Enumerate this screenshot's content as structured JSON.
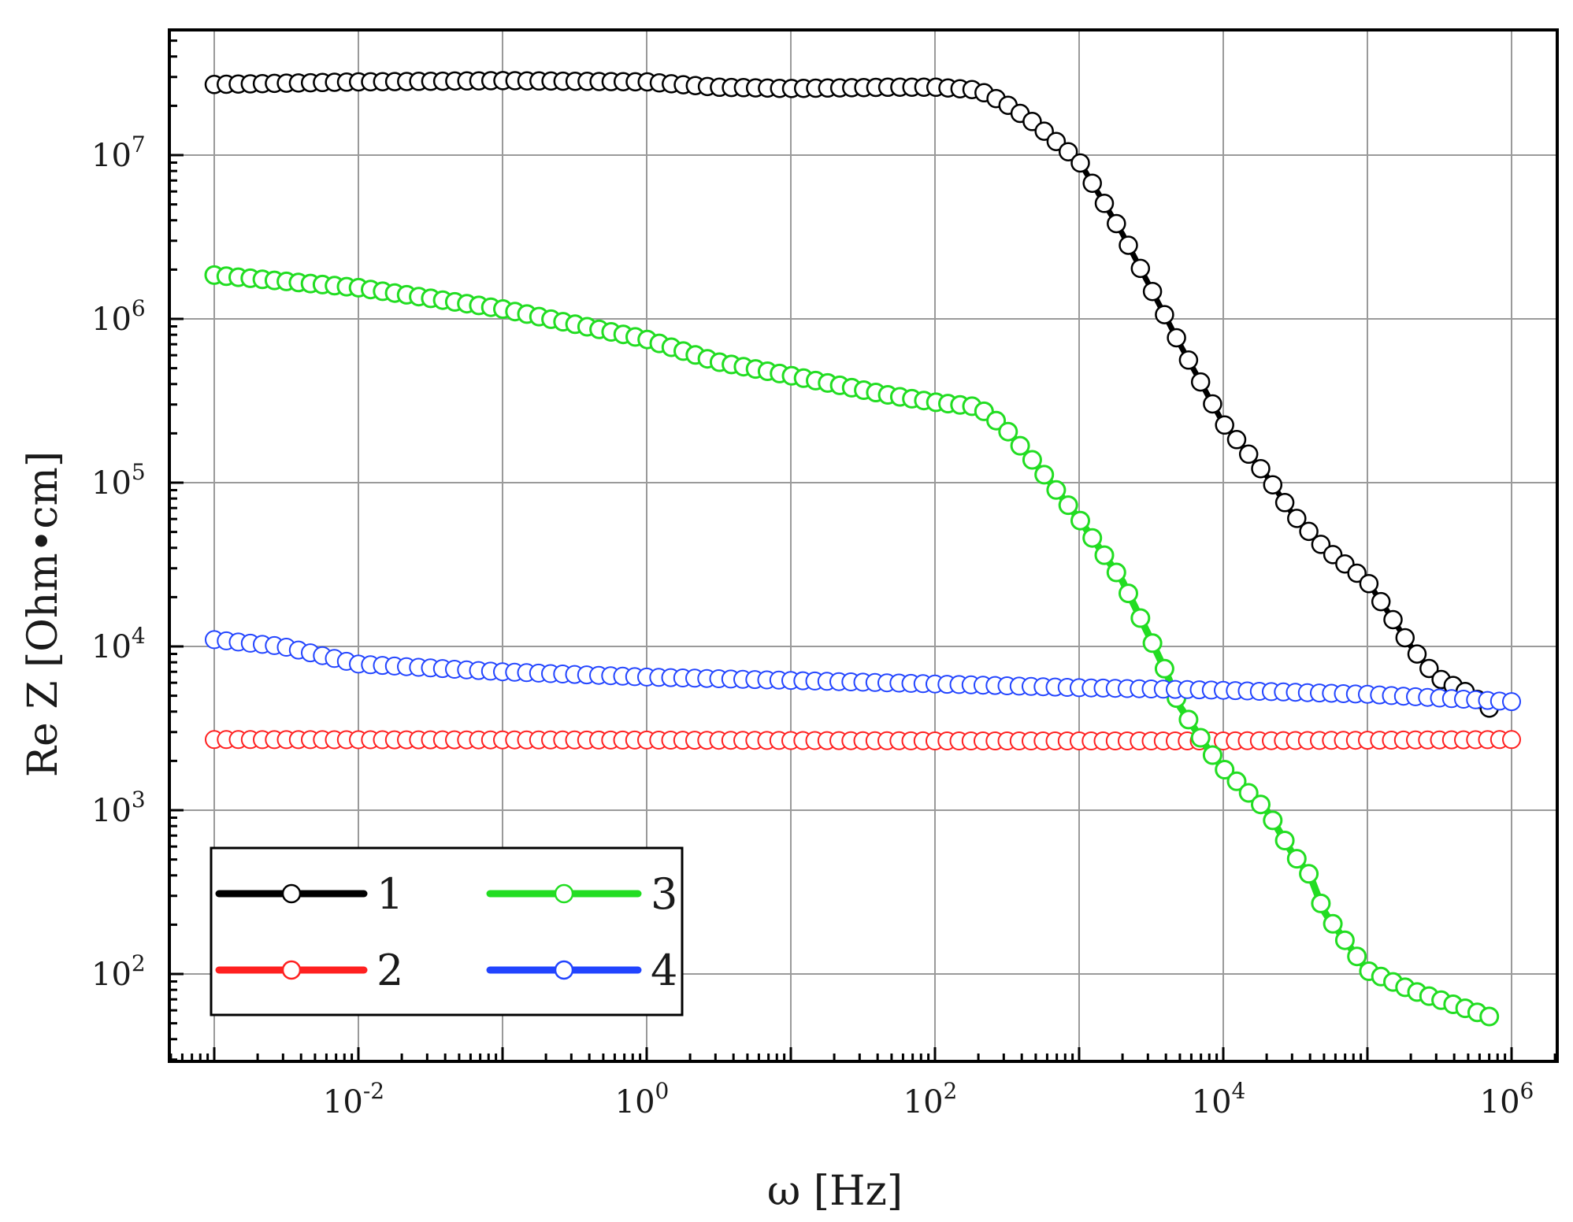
{
  "chart_data": {
    "type": "line",
    "xlabel": "ω [Hz]",
    "ylabel": "Re Z [Ohm•cm]",
    "xscale": "log",
    "yscale": "log",
    "xlim": [
      0.0005,
      2000000
    ],
    "ylim": [
      40,
      60000000
    ],
    "grid": true,
    "legend_position": "bottom-left",
    "x_ticks": [
      {
        "base": "10",
        "exp": "-2",
        "value": 0.01
      },
      {
        "base": "10",
        "exp": "0",
        "value": 1
      },
      {
        "base": "10",
        "exp": "2",
        "value": 100
      },
      {
        "base": "10",
        "exp": "4",
        "value": 10000
      },
      {
        "base": "10",
        "exp": "6",
        "value": 1000000
      }
    ],
    "y_ticks": [
      {
        "base": "10",
        "exp": "2",
        "value": 100
      },
      {
        "base": "10",
        "exp": "3",
        "value": 1000
      },
      {
        "base": "10",
        "exp": "4",
        "value": 10000
      },
      {
        "base": "10",
        "exp": "5",
        "value": 100000
      },
      {
        "base": "10",
        "exp": "6",
        "value": 1000000
      },
      {
        "base": "10",
        "exp": "7",
        "value": 10000000
      }
    ],
    "series": [
      {
        "name": "1",
        "color": "#000000",
        "points": [
          [
            0.001,
            27000000
          ],
          [
            0.01,
            28000000
          ],
          [
            0.1,
            28500000
          ],
          [
            1,
            28000000
          ],
          [
            3,
            26000000
          ],
          [
            10,
            25500000
          ],
          [
            50,
            26000000
          ],
          [
            100,
            26000000
          ],
          [
            200,
            25000000
          ],
          [
            300,
            21000000
          ],
          [
            500,
            15500000
          ],
          [
            1000,
            9200000
          ],
          [
            2000,
            3300000
          ],
          [
            5000,
            700000
          ],
          [
            10000,
            230000
          ],
          [
            20000,
            110000
          ],
          [
            30000,
            65000
          ],
          [
            50000,
            40000
          ],
          [
            100000,
            25000
          ],
          [
            200000,
            10000
          ],
          [
            300000,
            6500
          ],
          [
            500000,
            5200
          ],
          [
            700000,
            4200
          ]
        ]
      },
      {
        "name": "2",
        "color": "#ff2020",
        "points": [
          [
            0.001,
            2700
          ],
          [
            1,
            2680
          ],
          [
            100,
            2650
          ],
          [
            10000,
            2650
          ],
          [
            1000000,
            2700
          ]
        ]
      },
      {
        "name": "3",
        "color": "#22dd22",
        "points": [
          [
            0.001,
            1850000
          ],
          [
            0.01,
            1550000
          ],
          [
            0.1,
            1150000
          ],
          [
            1,
            750000
          ],
          [
            3,
            550000
          ],
          [
            10,
            450000
          ],
          [
            50,
            340000
          ],
          [
            100,
            310000
          ],
          [
            200,
            290000
          ],
          [
            300,
            220000
          ],
          [
            500,
            130000
          ],
          [
            1000,
            60000
          ],
          [
            2000,
            25000
          ],
          [
            3000,
            12000
          ],
          [
            4000,
            7000
          ],
          [
            5000,
            4300
          ],
          [
            8000,
            2300
          ],
          [
            10000,
            1800
          ],
          [
            20000,
            1000
          ],
          [
            30000,
            550
          ],
          [
            40000,
            400
          ],
          [
            50000,
            240
          ],
          [
            70000,
            160
          ],
          [
            100000,
            105
          ],
          [
            200000,
            80
          ],
          [
            400000,
            65
          ],
          [
            700000,
            55
          ]
        ]
      },
      {
        "name": "4",
        "color": "#2244ff",
        "points": [
          [
            0.001,
            11000
          ],
          [
            0.003,
            10000
          ],
          [
            0.01,
            7800
          ],
          [
            0.1,
            7000
          ],
          [
            1,
            6500
          ],
          [
            10,
            6200
          ],
          [
            100,
            5900
          ],
          [
            1000,
            5600
          ],
          [
            10000,
            5400
          ],
          [
            100000,
            5100
          ],
          [
            1000000,
            4600
          ]
        ]
      }
    ],
    "legend": {
      "entries": [
        {
          "label": "1",
          "color": "#000000"
        },
        {
          "label": "2",
          "color": "#ff2020"
        },
        {
          "label": "3",
          "color": "#22dd22"
        },
        {
          "label": "4",
          "color": "#2244ff"
        }
      ]
    }
  }
}
